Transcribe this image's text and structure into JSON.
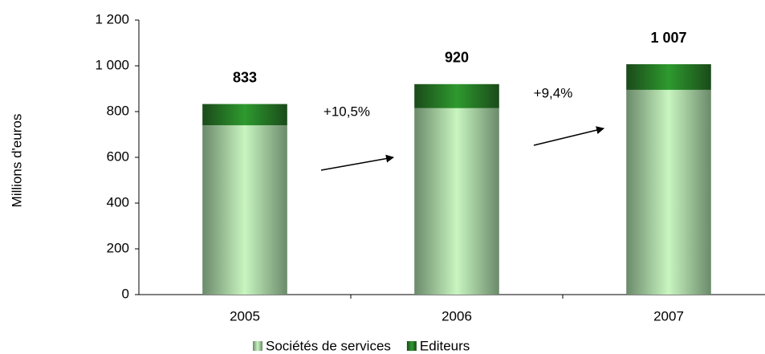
{
  "chart_data": {
    "type": "stacked_bar",
    "y_label": "Millions d'euros",
    "categories": [
      "2005",
      "2006",
      "2007"
    ],
    "series": [
      {
        "name": "Sociétés de services",
        "color": "#c8f5c0",
        "values": [
          740,
          815,
          895
        ]
      },
      {
        "name": "Editeurs",
        "color": "#2e8b2e",
        "values": [
          93,
          105,
          112
        ]
      }
    ],
    "total_labels": [
      "833",
      "920",
      "1 007"
    ],
    "growth_labels": [
      "+10,5%",
      "+9,4%"
    ],
    "ylim": [
      0,
      1200
    ],
    "yticks": [
      0,
      200,
      400,
      600,
      800,
      {
        "value": 1000,
        "label": "1 000"
      },
      {
        "value": 1200,
        "label": "1 200"
      }
    ],
    "legend": "bottom"
  }
}
